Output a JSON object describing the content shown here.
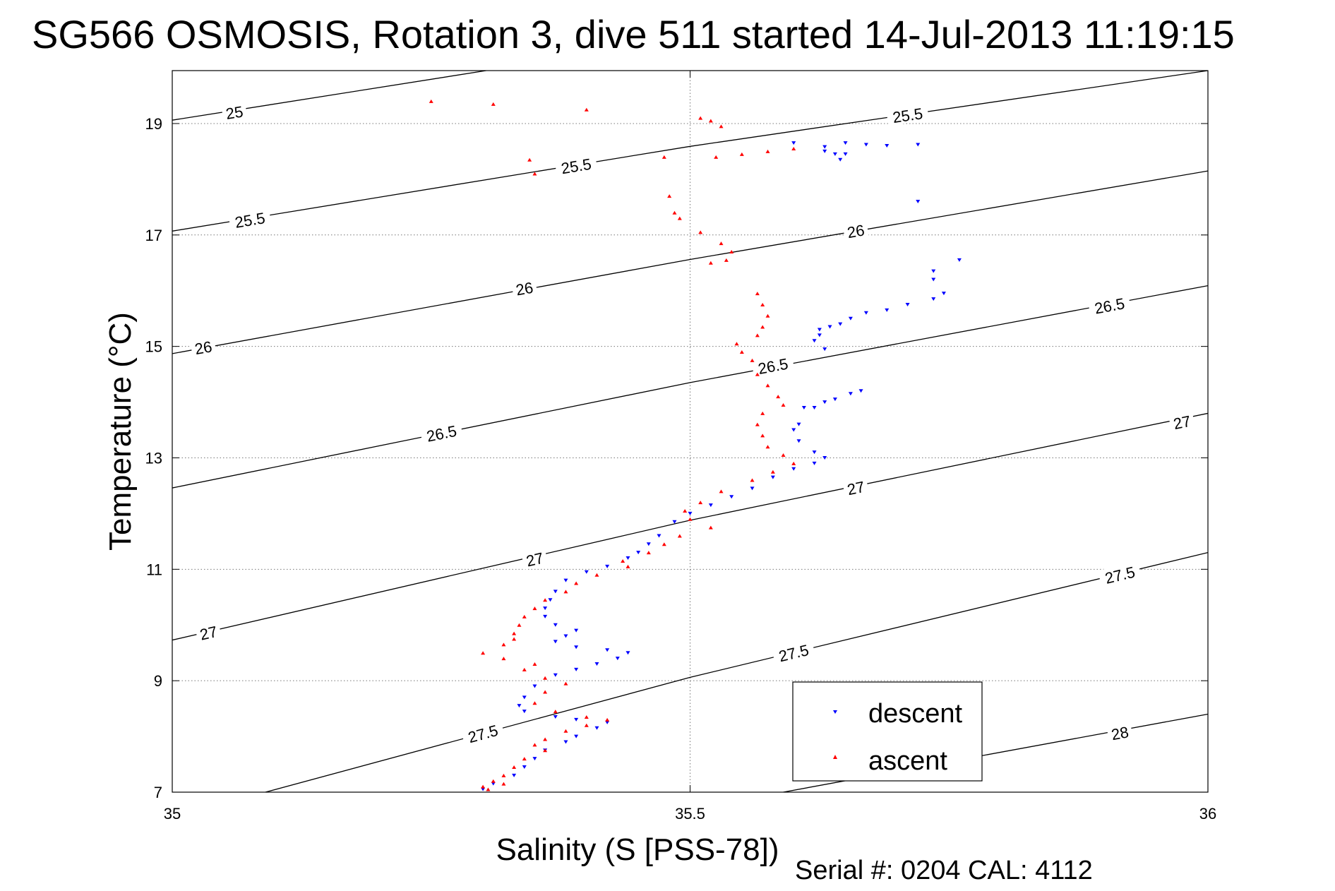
{
  "chart_data": {
    "type": "scatter",
    "title": "SG566 OSMOSIS, Rotation 3, dive 511 started 14-Jul-2013 11:19:15",
    "xlabel": "Salinity (S [PSS-78])",
    "ylabel": "Temperature (°C)",
    "xlim": [
      35,
      36
    ],
    "ylim": [
      7,
      19.95
    ],
    "x_ticks": [
      35,
      35.5,
      36
    ],
    "x_tick_labels": [
      "35",
      "35.5",
      "36"
    ],
    "y_ticks": [
      7,
      9,
      11,
      13,
      15,
      17,
      19
    ],
    "y_tick_labels": [
      "7",
      "9",
      "11",
      "13",
      "15",
      "17",
      "19"
    ],
    "grid": "dotted",
    "legend_position": "bottom-right",
    "footer": "Serial #: 0204  CAL: 4112",
    "colors": {
      "descent": "#0000ff",
      "ascent": "#ff0000",
      "contour": "#000000"
    },
    "density_contours": [
      {
        "level": 25,
        "points": [
          [
            35,
            19.06
          ],
          [
            35.303,
            19.95
          ]
        ],
        "labels": [
          {
            "text": "25",
            "s": 35.06,
            "t": 19.2
          }
        ]
      },
      {
        "level": 25.5,
        "points": [
          [
            35,
            17.07
          ],
          [
            35.5,
            18.59
          ],
          [
            36,
            19.95
          ]
        ],
        "labels": [
          {
            "text": "25.5",
            "s": 35.075,
            "t": 17.27
          },
          {
            "text": "25.5",
            "s": 35.39,
            "t": 18.24
          },
          {
            "text": "25.5",
            "s": 35.71,
            "t": 19.15
          }
        ]
      },
      {
        "level": 26,
        "points": [
          [
            35,
            14.87
          ],
          [
            35.5,
            16.56
          ],
          [
            36,
            18.15
          ]
        ],
        "labels": [
          {
            "text": "26",
            "s": 35.03,
            "t": 14.98
          },
          {
            "text": "26",
            "s": 35.34,
            "t": 16.04
          },
          {
            "text": "26",
            "s": 35.66,
            "t": 17.07
          }
        ]
      },
      {
        "level": 26.5,
        "points": [
          [
            35,
            12.46
          ],
          [
            35.5,
            14.35
          ],
          [
            36,
            16.09
          ]
        ],
        "labels": [
          {
            "text": "26.5",
            "s": 35.26,
            "t": 13.44
          },
          {
            "text": "26.5",
            "s": 35.58,
            "t": 14.65
          },
          {
            "text": "26.5",
            "s": 35.905,
            "t": 15.73
          }
        ]
      },
      {
        "level": 27,
        "points": [
          [
            35,
            9.73
          ],
          [
            35.5,
            11.88
          ],
          [
            36,
            13.8
          ]
        ],
        "labels": [
          {
            "text": "27",
            "s": 35.035,
            "t": 9.86
          },
          {
            "text": "27",
            "s": 35.35,
            "t": 11.18
          },
          {
            "text": "27",
            "s": 35.66,
            "t": 12.46
          },
          {
            "text": "27",
            "s": 35.975,
            "t": 13.64
          }
        ]
      },
      {
        "level": 27.5,
        "points": [
          [
            35.09,
            7.0
          ],
          [
            35.5,
            9.06
          ],
          [
            36,
            11.3
          ]
        ],
        "labels": [
          {
            "text": "27.5",
            "s": 35.3,
            "t": 8.05
          },
          {
            "text": "27.5",
            "s": 35.6,
            "t": 9.5
          },
          {
            "text": "27.5",
            "s": 35.915,
            "t": 10.9
          }
        ]
      },
      {
        "level": 28,
        "points": [
          [
            35.59,
            7.0
          ],
          [
            36,
            8.4
          ]
        ],
        "labels": [
          {
            "text": "28",
            "s": 35.915,
            "t": 8.06
          }
        ]
      }
    ],
    "series": [
      {
        "name": "descent",
        "marker": "triangle-down",
        "color": "#0000ff",
        "points": [
          [
            35.6,
            18.65
          ],
          [
            35.63,
            18.58
          ],
          [
            35.65,
            18.65
          ],
          [
            35.67,
            18.62
          ],
          [
            35.69,
            18.6
          ],
          [
            35.72,
            18.62
          ],
          [
            35.63,
            18.5
          ],
          [
            35.64,
            18.45
          ],
          [
            35.645,
            18.35
          ],
          [
            35.65,
            18.45
          ],
          [
            35.72,
            17.6
          ],
          [
            35.76,
            16.55
          ],
          [
            35.735,
            16.35
          ],
          [
            35.735,
            16.2
          ],
          [
            35.745,
            15.95
          ],
          [
            35.735,
            15.85
          ],
          [
            35.71,
            15.75
          ],
          [
            35.69,
            15.65
          ],
          [
            35.67,
            15.6
          ],
          [
            35.655,
            15.5
          ],
          [
            35.645,
            15.4
          ],
          [
            35.635,
            15.35
          ],
          [
            35.625,
            15.3
          ],
          [
            35.625,
            15.2
          ],
          [
            35.62,
            15.1
          ],
          [
            35.63,
            14.95
          ],
          [
            35.665,
            14.2
          ],
          [
            35.655,
            14.15
          ],
          [
            35.64,
            14.05
          ],
          [
            35.63,
            14.0
          ],
          [
            35.62,
            13.9
          ],
          [
            35.61,
            13.9
          ],
          [
            35.605,
            13.6
          ],
          [
            35.6,
            13.5
          ],
          [
            35.605,
            13.3
          ],
          [
            35.62,
            13.1
          ],
          [
            35.63,
            13.0
          ],
          [
            35.62,
            12.9
          ],
          [
            35.6,
            12.8
          ],
          [
            35.58,
            12.65
          ],
          [
            35.56,
            12.45
          ],
          [
            35.54,
            12.3
          ],
          [
            35.52,
            12.15
          ],
          [
            35.5,
            12.0
          ],
          [
            35.485,
            11.85
          ],
          [
            35.47,
            11.6
          ],
          [
            35.46,
            11.45
          ],
          [
            35.45,
            11.3
          ],
          [
            35.44,
            11.2
          ],
          [
            35.42,
            11.05
          ],
          [
            35.4,
            10.95
          ],
          [
            35.38,
            10.8
          ],
          [
            35.37,
            10.6
          ],
          [
            35.365,
            10.45
          ],
          [
            35.36,
            10.3
          ],
          [
            35.36,
            10.15
          ],
          [
            35.37,
            10.0
          ],
          [
            35.39,
            9.9
          ],
          [
            35.38,
            9.8
          ],
          [
            35.37,
            9.7
          ],
          [
            35.39,
            9.6
          ],
          [
            35.42,
            9.55
          ],
          [
            35.44,
            9.5
          ],
          [
            35.43,
            9.4
          ],
          [
            35.41,
            9.3
          ],
          [
            35.39,
            9.2
          ],
          [
            35.37,
            9.1
          ],
          [
            35.35,
            8.9
          ],
          [
            35.34,
            8.7
          ],
          [
            35.335,
            8.55
          ],
          [
            35.34,
            8.45
          ],
          [
            35.37,
            8.35
          ],
          [
            35.39,
            8.3
          ],
          [
            35.42,
            8.25
          ],
          [
            35.41,
            8.15
          ],
          [
            35.39,
            8.0
          ],
          [
            35.38,
            7.9
          ],
          [
            35.36,
            7.75
          ],
          [
            35.35,
            7.6
          ],
          [
            35.34,
            7.45
          ],
          [
            35.33,
            7.3
          ],
          [
            35.31,
            7.15
          ],
          [
            35.3,
            7.05
          ]
        ]
      },
      {
        "name": "ascent",
        "marker": "triangle-up",
        "color": "#ff0000",
        "points": [
          [
            35.25,
            19.4
          ],
          [
            35.31,
            19.35
          ],
          [
            35.4,
            19.25
          ],
          [
            35.51,
            19.1
          ],
          [
            35.52,
            19.05
          ],
          [
            35.53,
            18.95
          ],
          [
            35.345,
            18.35
          ],
          [
            35.35,
            18.1
          ],
          [
            35.475,
            18.4
          ],
          [
            35.525,
            18.4
          ],
          [
            35.55,
            18.45
          ],
          [
            35.575,
            18.5
          ],
          [
            35.6,
            18.55
          ],
          [
            35.48,
            17.7
          ],
          [
            35.485,
            17.4
          ],
          [
            35.49,
            17.3
          ],
          [
            35.51,
            17.05
          ],
          [
            35.53,
            16.85
          ],
          [
            35.54,
            16.7
          ],
          [
            35.52,
            16.5
          ],
          [
            35.535,
            16.55
          ],
          [
            35.565,
            15.95
          ],
          [
            35.57,
            15.75
          ],
          [
            35.575,
            15.55
          ],
          [
            35.57,
            15.35
          ],
          [
            35.565,
            15.2
          ],
          [
            35.545,
            15.05
          ],
          [
            35.55,
            14.9
          ],
          [
            35.56,
            14.75
          ],
          [
            35.565,
            14.5
          ],
          [
            35.575,
            14.3
          ],
          [
            35.585,
            14.1
          ],
          [
            35.59,
            13.95
          ],
          [
            35.57,
            13.8
          ],
          [
            35.565,
            13.6
          ],
          [
            35.57,
            13.4
          ],
          [
            35.575,
            13.2
          ],
          [
            35.59,
            13.05
          ],
          [
            35.6,
            12.9
          ],
          [
            35.58,
            12.75
          ],
          [
            35.56,
            12.6
          ],
          [
            35.53,
            12.4
          ],
          [
            35.51,
            12.2
          ],
          [
            35.495,
            12.05
          ],
          [
            35.5,
            11.9
          ],
          [
            35.52,
            11.75
          ],
          [
            35.49,
            11.6
          ],
          [
            35.475,
            11.45
          ],
          [
            35.46,
            11.3
          ],
          [
            35.435,
            11.15
          ],
          [
            35.44,
            11.05
          ],
          [
            35.41,
            10.9
          ],
          [
            35.39,
            10.75
          ],
          [
            35.38,
            10.6
          ],
          [
            35.36,
            10.45
          ],
          [
            35.35,
            10.3
          ],
          [
            35.34,
            10.15
          ],
          [
            35.335,
            10.0
          ],
          [
            35.33,
            9.85
          ],
          [
            35.33,
            9.75
          ],
          [
            35.32,
            9.65
          ],
          [
            35.3,
            9.5
          ],
          [
            35.32,
            9.4
          ],
          [
            35.35,
            9.3
          ],
          [
            35.34,
            9.2
          ],
          [
            35.36,
            9.05
          ],
          [
            35.38,
            8.95
          ],
          [
            35.36,
            8.8
          ],
          [
            35.35,
            8.6
          ],
          [
            35.37,
            8.45
          ],
          [
            35.4,
            8.35
          ],
          [
            35.42,
            8.3
          ],
          [
            35.4,
            8.2
          ],
          [
            35.38,
            8.1
          ],
          [
            35.36,
            7.95
          ],
          [
            35.35,
            7.85
          ],
          [
            35.36,
            7.75
          ],
          [
            35.34,
            7.6
          ],
          [
            35.33,
            7.45
          ],
          [
            35.32,
            7.3
          ],
          [
            35.31,
            7.2
          ],
          [
            35.32,
            7.15
          ],
          [
            35.3,
            7.1
          ],
          [
            35.305,
            7.05
          ]
        ]
      }
    ]
  }
}
